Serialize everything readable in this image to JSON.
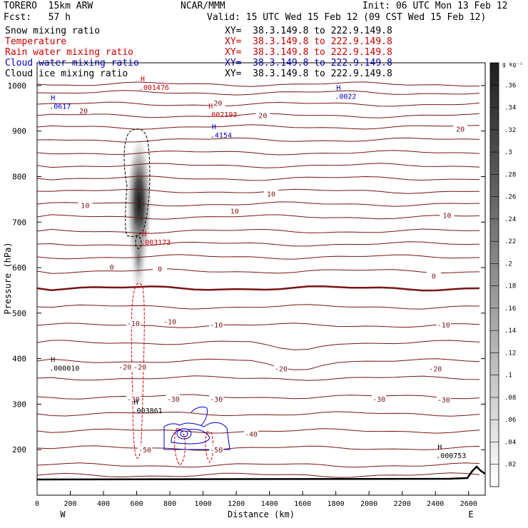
{
  "header": {
    "model": "TORERO  15km ARW",
    "org": "NCAR/MMM",
    "init": "Init: 06 UTC Mon 13 Feb 12",
    "fcst": "Fcst:   57 h",
    "valid": "Valid: 15 UTC Wed 15 Feb 12 (09 CST Wed 15 Feb 12)"
  },
  "fields": [
    {
      "name": "Snow mixing ratio",
      "xy": "XY=  38.3.149.8 to 222.9.149.8",
      "color": "#000000"
    },
    {
      "name": "Temperature",
      "xy": "XY=  38.3.149.8 to 222.9.149.8",
      "color": "#cc0000"
    },
    {
      "name": "Rain water mixing ratio",
      "xy": "XY=  38.3.149.8 to 222.9.149.8",
      "color": "#cc0000"
    },
    {
      "name": "Cloud water mixing ratio",
      "xy": "XY=  38.3.149.8 to 222.9.149.8",
      "color": "#0000cc"
    },
    {
      "name": "Cloud ice mixing ratio",
      "xy": "XY=  38.3.149.8 to 222.9.149.8",
      "color": "#000000"
    }
  ],
  "chart_data": {
    "type": "cross-section",
    "xlabel": "Distance (km)",
    "ylabel": "Pressure (hPa)",
    "xlim": [
      0,
      2700
    ],
    "ylim": [
      1050,
      100
    ],
    "x_ticks": [
      0,
      200,
      400,
      600,
      800,
      1000,
      1200,
      1400,
      1600,
      1800,
      2000,
      2200,
      2400,
      2600
    ],
    "y_ticks": [
      200,
      300,
      400,
      500,
      600,
      700,
      800,
      900,
      1000
    ],
    "x_ends": {
      "left": "W",
      "right": "E"
    },
    "colorbar": {
      "unit": "g kg⁻¹",
      "ticks": [
        ".02",
        ".04",
        ".06",
        ".08",
        ".1",
        ".12",
        ".14",
        ".16",
        ".18",
        ".2",
        ".22",
        ".24",
        ".26",
        ".28",
        ".3",
        ".32",
        ".34",
        ".36"
      ]
    },
    "temperature_labels": [
      {
        "label": "-50",
        "x": 650,
        "p": 200
      },
      {
        "label": "-50",
        "x": 1080,
        "p": 200
      },
      {
        "label": "-40",
        "x": 1290,
        "p": 235
      },
      {
        "label": "-30",
        "x": 580,
        "p": 312
      },
      {
        "label": "-30",
        "x": 820,
        "p": 312
      },
      {
        "label": "-30",
        "x": 1080,
        "p": 312
      },
      {
        "label": "-30",
        "x": 2060,
        "p": 312
      },
      {
        "label": "-30",
        "x": 2450,
        "p": 310
      },
      {
        "label": "-20",
        "x": 530,
        "p": 382
      },
      {
        "label": "-20",
        "x": 620,
        "p": 382
      },
      {
        "label": "-20",
        "x": 1470,
        "p": 378
      },
      {
        "label": "-20",
        "x": 2400,
        "p": 378
      },
      {
        "label": "-10",
        "x": 580,
        "p": 478
      },
      {
        "label": "-10",
        "x": 800,
        "p": 482
      },
      {
        "label": "-10",
        "x": 1080,
        "p": 475
      },
      {
        "label": "-10",
        "x": 2450,
        "p": 475
      },
      {
        "label": "0",
        "x": 450,
        "p": 602
      },
      {
        "label": "0",
        "x": 740,
        "p": 598
      },
      {
        "label": "0",
        "x": 2390,
        "p": 582
      },
      {
        "label": "10",
        "x": 290,
        "p": 737
      },
      {
        "label": "10",
        "x": 1190,
        "p": 725
      },
      {
        "label": "10",
        "x": 1410,
        "p": 762
      },
      {
        "label": "10",
        "x": 2470,
        "p": 715
      },
      {
        "label": "20",
        "x": 280,
        "p": 945
      },
      {
        "label": "20",
        "x": 1090,
        "p": 962
      },
      {
        "label": "20",
        "x": 1360,
        "p": 935
      },
      {
        "label": "20",
        "x": 2550,
        "p": 905
      }
    ],
    "extrema": [
      {
        "mark": "H",
        "value": ".000753",
        "x": 2430,
        "p": 191,
        "color": "#000000"
      },
      {
        "mark": "H",
        "value": ".003861",
        "x": 600,
        "p": 290,
        "color": "#000000"
      },
      {
        "mark": "H",
        "value": ".000010",
        "x": 100,
        "p": 383,
        "color": "#000000"
      },
      {
        "mark": "H",
        "value": ".003173",
        "x": 650,
        "p": 660,
        "color": "#cc0000"
      },
      {
        "mark": "H",
        "value": ".4154",
        "x": 1070,
        "p": 895,
        "color": "#0000cc"
      },
      {
        "mark": "H",
        "value": ".002193",
        "x": 1050,
        "p": 940,
        "color": "#cc0000"
      },
      {
        "mark": "H",
        "value": ".0617",
        "x": 100,
        "p": 958,
        "color": "#0000cc"
      },
      {
        "mark": "H",
        "value": ".0022",
        "x": 1820,
        "p": 980,
        "color": "#0000cc"
      },
      {
        "mark": "H",
        "value": ".001476",
        "x": 640,
        "p": 1000,
        "color": "#cc0000"
      }
    ]
  }
}
